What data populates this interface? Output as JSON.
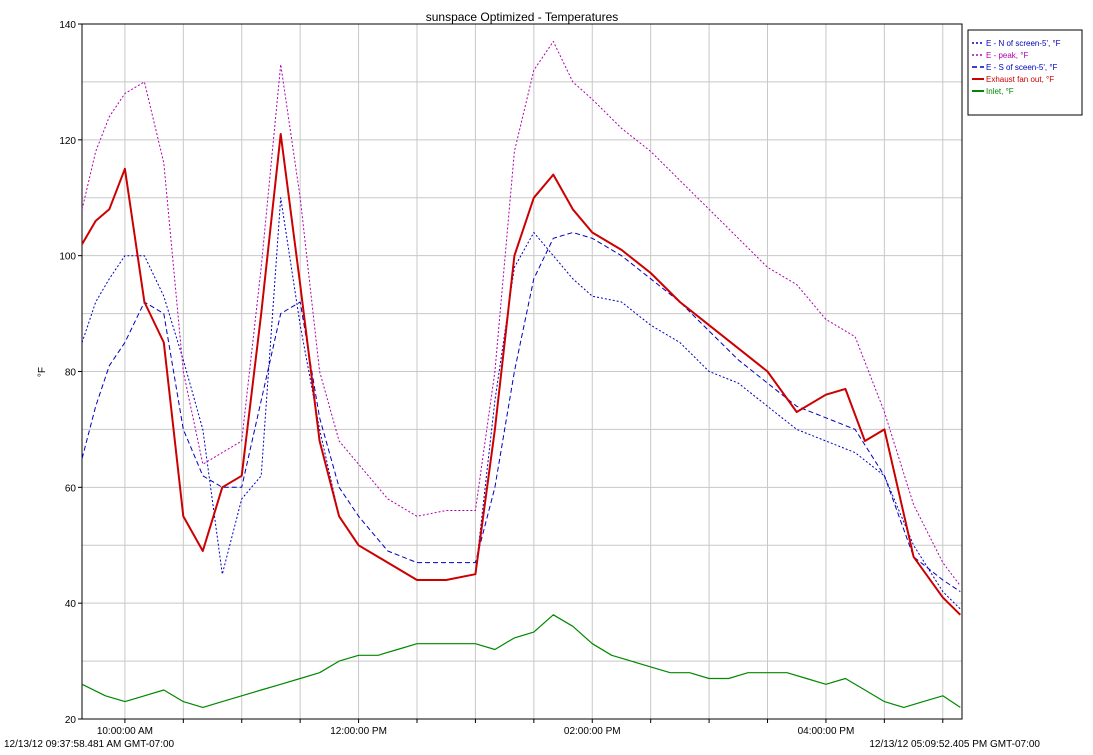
{
  "chart_data": {
    "type": "line",
    "title": "sunspace Optimized - Temperatures",
    "ylabel": "°F",
    "xlabel": "",
    "ylim": [
      20,
      140
    ],
    "y_ticks": [
      20,
      40,
      60,
      80,
      100,
      120,
      140
    ],
    "x_ticks": [
      "10:00:00 AM",
      "12:00:00 PM",
      "02:00:00 PM",
      "04:00:00 PM"
    ],
    "x_range_labels": {
      "start": "12/13/12 09:37:58.481 AM GMT-07:00",
      "end": "12/13/12 05:09:52.405 PM GMT-07:00"
    },
    "grid": true,
    "legend_position": "top-right",
    "series": [
      {
        "name": "E - N of screen-5', °F",
        "color": "#0000c0",
        "style": "dotted",
        "x": [
          "09:38",
          "09:45",
          "09:52",
          "10:00",
          "10:10",
          "10:20",
          "10:30",
          "10:40",
          "10:50",
          "11:00",
          "11:10",
          "11:20",
          "11:30",
          "11:40",
          "11:50",
          "12:00",
          "12:15",
          "12:30",
          "12:45",
          "13:00",
          "13:10",
          "13:20",
          "13:30",
          "13:40",
          "13:50",
          "14:00",
          "14:15",
          "14:30",
          "14:45",
          "15:00",
          "15:15",
          "15:30",
          "15:45",
          "16:00",
          "16:15",
          "16:30",
          "16:45",
          "17:00",
          "17:09"
        ],
        "values": [
          85,
          92,
          96,
          100,
          100,
          93,
          82,
          70,
          45,
          58,
          62,
          110,
          88,
          70,
          55,
          50,
          47,
          44,
          44,
          45,
          75,
          98,
          104,
          100,
          96,
          93,
          92,
          88,
          85,
          80,
          78,
          74,
          70,
          68,
          66,
          62,
          50,
          42,
          39
        ]
      },
      {
        "name": "E - peak, °F",
        "color": "#b000b0",
        "style": "dotted",
        "x": [
          "09:38",
          "09:45",
          "09:52",
          "10:00",
          "10:10",
          "10:20",
          "10:30",
          "10:40",
          "10:50",
          "11:00",
          "11:10",
          "11:20",
          "11:30",
          "11:40",
          "11:50",
          "12:00",
          "12:15",
          "12:30",
          "12:45",
          "13:00",
          "13:10",
          "13:20",
          "13:30",
          "13:40",
          "13:50",
          "14:00",
          "14:15",
          "14:30",
          "14:45",
          "15:00",
          "15:15",
          "15:30",
          "15:45",
          "16:00",
          "16:15",
          "16:30",
          "16:45",
          "17:00",
          "17:09"
        ],
        "values": [
          108,
          118,
          124,
          128,
          130,
          116,
          80,
          64,
          66,
          68,
          98,
          133,
          110,
          80,
          68,
          64,
          58,
          55,
          56,
          56,
          80,
          118,
          132,
          137,
          130,
          127,
          122,
          118,
          113,
          108,
          103,
          98,
          95,
          89,
          86,
          73,
          57,
          47,
          43
        ]
      },
      {
        "name": "E - S of sceen-5', °F",
        "color": "#0000c0",
        "style": "dashed",
        "x": [
          "09:38",
          "09:45",
          "09:52",
          "10:00",
          "10:10",
          "10:20",
          "10:30",
          "10:40",
          "10:50",
          "11:00",
          "11:10",
          "11:20",
          "11:30",
          "11:40",
          "11:50",
          "12:00",
          "12:15",
          "12:30",
          "12:45",
          "13:00",
          "13:10",
          "13:20",
          "13:30",
          "13:40",
          "13:50",
          "14:00",
          "14:15",
          "14:30",
          "14:45",
          "15:00",
          "15:15",
          "15:30",
          "15:45",
          "16:00",
          "16:15",
          "16:30",
          "16:45",
          "17:00",
          "17:09"
        ],
        "values": [
          65,
          74,
          81,
          85,
          92,
          90,
          70,
          62,
          60,
          60,
          75,
          90,
          92,
          72,
          60,
          55,
          49,
          47,
          47,
          47,
          60,
          80,
          96,
          103,
          104,
          103,
          100,
          96,
          92,
          87,
          82,
          78,
          74,
          72,
          70,
          62,
          48,
          44,
          42
        ]
      },
      {
        "name": "Exhaust fan out, °F",
        "color": "#cc0000",
        "style": "solid",
        "x": [
          "09:38",
          "09:45",
          "09:52",
          "10:00",
          "10:10",
          "10:20",
          "10:30",
          "10:40",
          "10:50",
          "11:00",
          "11:10",
          "11:20",
          "11:30",
          "11:40",
          "11:50",
          "12:00",
          "12:15",
          "12:30",
          "12:45",
          "13:00",
          "13:10",
          "13:20",
          "13:30",
          "13:40",
          "13:50",
          "14:00",
          "14:15",
          "14:30",
          "14:45",
          "15:00",
          "15:15",
          "15:30",
          "15:45",
          "16:00",
          "16:10",
          "16:20",
          "16:30",
          "16:45",
          "17:00",
          "17:09"
        ],
        "values": [
          102,
          106,
          108,
          115,
          92,
          85,
          55,
          49,
          60,
          62,
          90,
          121,
          95,
          68,
          55,
          50,
          47,
          44,
          44,
          45,
          70,
          100,
          110,
          114,
          108,
          104,
          101,
          97,
          92,
          88,
          84,
          80,
          73,
          76,
          77,
          68,
          70,
          48,
          41,
          38
        ]
      },
      {
        "name": "Inlet, °F",
        "color": "#008800",
        "style": "solid",
        "x": [
          "09:38",
          "09:50",
          "10:00",
          "10:10",
          "10:20",
          "10:30",
          "10:40",
          "10:50",
          "11:00",
          "11:10",
          "11:20",
          "11:30",
          "11:40",
          "11:50",
          "12:00",
          "12:10",
          "12:20",
          "12:30",
          "12:40",
          "12:50",
          "13:00",
          "13:10",
          "13:20",
          "13:30",
          "13:40",
          "13:50",
          "14:00",
          "14:10",
          "14:20",
          "14:30",
          "14:40",
          "14:50",
          "15:00",
          "15:10",
          "15:20",
          "15:30",
          "15:40",
          "15:50",
          "16:00",
          "16:10",
          "16:20",
          "16:30",
          "16:40",
          "16:50",
          "17:00",
          "17:09"
        ],
        "values": [
          26,
          24,
          23,
          24,
          25,
          23,
          22,
          23,
          24,
          25,
          26,
          27,
          28,
          30,
          31,
          31,
          32,
          33,
          33,
          33,
          33,
          32,
          34,
          35,
          38,
          36,
          33,
          31,
          30,
          29,
          28,
          28,
          27,
          27,
          28,
          28,
          28,
          27,
          26,
          27,
          25,
          23,
          22,
          23,
          24,
          22
        ]
      }
    ]
  }
}
